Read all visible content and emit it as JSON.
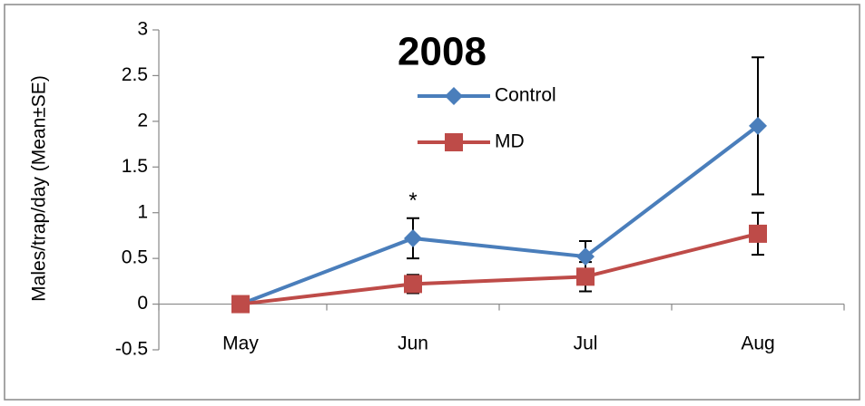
{
  "chart_data": {
    "type": "line",
    "title": "2008",
    "y_label": "Males/trap/day (Mean±SE)",
    "annotations": [
      {
        "text": "*",
        "category": 1,
        "y": 1.12
      }
    ],
    "categories": [
      "May",
      "Jun",
      "Jul",
      "Aug"
    ],
    "series": [
      {
        "name": "Control",
        "color": "#4a7ebb",
        "marker": "diamond",
        "values": [
          0,
          0.72,
          0.52,
          1.95
        ],
        "errors": [
          0,
          0.22,
          0.17,
          0.75
        ]
      },
      {
        "name": "MD",
        "color": "#be4b48",
        "marker": "square",
        "values": [
          0,
          0.22,
          0.3,
          0.77
        ],
        "errors": [
          0,
          0.1,
          0.16,
          0.23
        ]
      }
    ],
    "ylim": [
      -0.5,
      3
    ],
    "yticks": [
      -0.5,
      0,
      0.5,
      1,
      1.5,
      2,
      2.5,
      3
    ],
    "grid": false
  }
}
